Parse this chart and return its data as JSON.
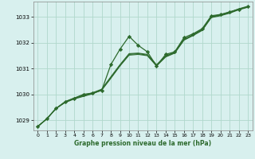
{
  "background_color": "#d8f0ee",
  "grid_color": "#b0d8cc",
  "line_color": "#2d6a2d",
  "xlabel": "Graphe pression niveau de la mer (hPa)",
  "xlim": [
    -0.5,
    23.5
  ],
  "ylim": [
    1028.6,
    1033.6
  ],
  "yticks": [
    1029,
    1030,
    1031,
    1032,
    1033
  ],
  "xticks": [
    0,
    1,
    2,
    3,
    4,
    5,
    6,
    7,
    8,
    9,
    10,
    11,
    12,
    13,
    14,
    15,
    16,
    17,
    18,
    19,
    20,
    21,
    22,
    23
  ],
  "x_values": [
    0,
    1,
    2,
    3,
    4,
    5,
    6,
    7,
    8,
    9,
    10,
    11,
    12,
    13,
    14,
    15,
    16,
    17,
    18,
    19,
    20,
    21,
    22,
    23
  ],
  "marker_line": [
    1028.75,
    1029.05,
    1029.45,
    1029.7,
    1029.85,
    1030.0,
    1030.05,
    1030.15,
    1031.15,
    1031.75,
    1032.25,
    1031.9,
    1031.65,
    1031.1,
    1031.55,
    1031.65,
    1032.2,
    1032.35,
    1032.55,
    1033.05,
    1033.1,
    1033.2,
    1033.3,
    1033.4
  ],
  "smooth_line1": [
    1028.75,
    1029.05,
    1029.45,
    1029.68,
    1029.82,
    1029.92,
    1030.02,
    1030.16,
    1030.62,
    1031.1,
    1031.52,
    1031.55,
    1031.5,
    1031.1,
    1031.45,
    1031.6,
    1032.1,
    1032.28,
    1032.48,
    1032.98,
    1033.05,
    1033.15,
    1033.28,
    1033.38
  ],
  "smooth_line2": [
    1028.75,
    1029.05,
    1029.45,
    1029.7,
    1029.84,
    1029.94,
    1030.04,
    1030.18,
    1030.65,
    1031.12,
    1031.55,
    1031.58,
    1031.52,
    1031.12,
    1031.47,
    1031.62,
    1032.12,
    1032.3,
    1032.5,
    1033.0,
    1033.07,
    1033.17,
    1033.3,
    1033.4
  ],
  "smooth_line3": [
    1028.75,
    1029.05,
    1029.45,
    1029.72,
    1029.86,
    1029.96,
    1030.06,
    1030.2,
    1030.68,
    1031.15,
    1031.58,
    1031.6,
    1031.55,
    1031.15,
    1031.49,
    1031.64,
    1032.14,
    1032.32,
    1032.52,
    1033.02,
    1033.09,
    1033.19,
    1033.32,
    1033.42
  ]
}
